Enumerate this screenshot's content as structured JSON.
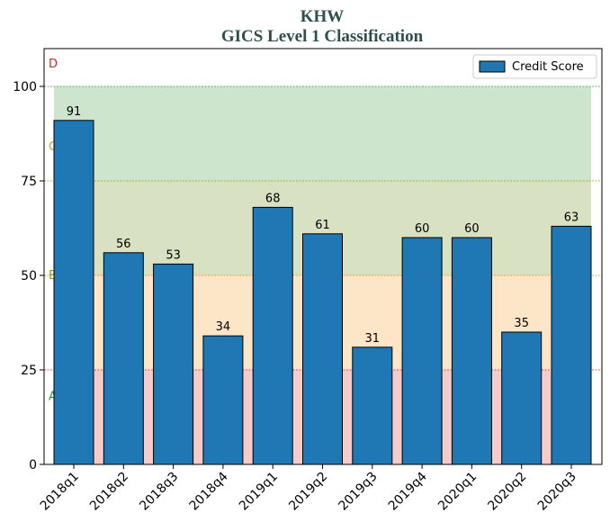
{
  "chart_data": {
    "type": "bar",
    "title": "KHW",
    "subtitle": "GICS Level 1 Classification",
    "xlabel": "",
    "ylabel": "",
    "categories": [
      "2018q1",
      "2018q2",
      "2018q3",
      "2018q4",
      "2019q1",
      "2019q2",
      "2019q3",
      "2019q4",
      "2020q1",
      "2020q2",
      "2020q3"
    ],
    "series": [
      {
        "name": "Credit Score",
        "values": [
          91,
          56,
          53,
          34,
          68,
          61,
          31,
          60,
          60,
          35,
          63
        ],
        "color": "#1f77b4"
      }
    ],
    "ylim": [
      0,
      110
    ],
    "yticks": [
      0,
      25,
      50,
      75,
      100
    ],
    "grid": false,
    "legend": "top-right",
    "bands": [
      {
        "label": "A",
        "from": 0,
        "to": 25,
        "color": "#f4cccc",
        "line_color": "#d62728",
        "label_color": "#2ca02c"
      },
      {
        "label": "B",
        "from": 25,
        "to": 50,
        "color": "#fde6c8",
        "line_color": "#ff7f0e",
        "label_color": "#9aa000"
      },
      {
        "label": "C",
        "from": 50,
        "to": 75,
        "color": "#d8e2c3",
        "line_color": "#9aa000",
        "label_color": "#ff8c00"
      },
      {
        "label": "D",
        "from": 75,
        "to": 100,
        "color": "#cce5cc",
        "line_color": "#2ca02c",
        "label_color": "#d62728"
      }
    ]
  }
}
